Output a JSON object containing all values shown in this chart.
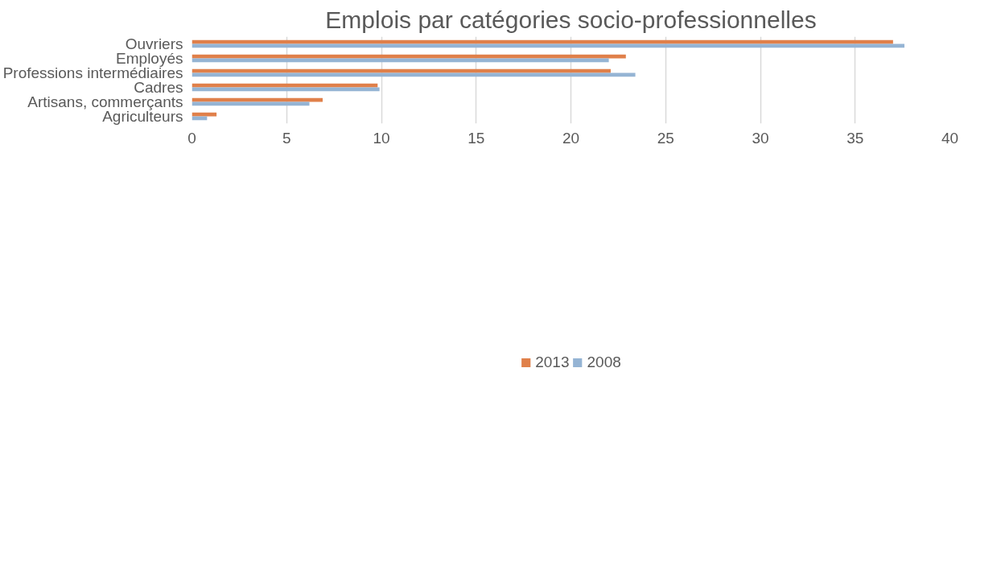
{
  "chart_data": {
    "type": "bar",
    "orientation": "horizontal",
    "title": "Emplois par catégories socio-professionnelles",
    "categories": [
      "Ouvriers",
      "Employés",
      "Professions intermédiaires",
      "Cadres",
      "Artisans, commerçants",
      "Agriculteurs"
    ],
    "series": [
      {
        "name": "2013",
        "color": "#e0804a",
        "values": [
          37.0,
          22.9,
          22.1,
          9.8,
          6.9,
          1.3
        ]
      },
      {
        "name": "2008",
        "color": "#95b4d4",
        "values": [
          37.6,
          22.0,
          23.4,
          9.9,
          6.2,
          0.8
        ]
      }
    ],
    "xlim": [
      0,
      40
    ],
    "xticks": [
      0,
      5,
      10,
      15,
      20,
      25,
      30,
      35,
      40
    ],
    "grid": "x",
    "legend": "bottom"
  }
}
